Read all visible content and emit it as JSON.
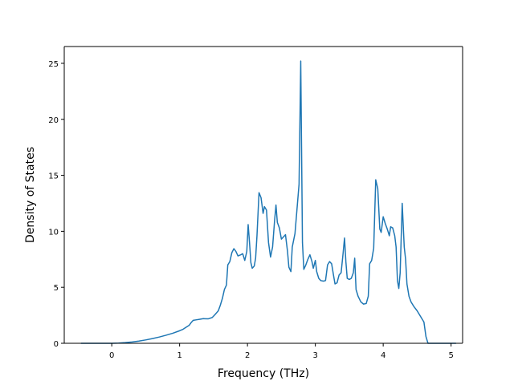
{
  "chart_data": {
    "type": "line",
    "title": "",
    "xlabel": "Frequency (THz)",
    "ylabel": "Density of States",
    "xlim": [
      -0.7,
      5.17
    ],
    "ylim": [
      0,
      26.5
    ],
    "grid": false,
    "legend": "none",
    "x_ticks": [
      0,
      1,
      2,
      3,
      4,
      5
    ],
    "y_ticks": [
      0,
      5,
      10,
      15,
      20,
      25
    ],
    "x_tick_labels": [
      "0",
      "1",
      "2",
      "3",
      "4",
      "5"
    ],
    "y_tick_labels": [
      "0",
      "5",
      "10",
      "15",
      "20",
      "25"
    ],
    "series": [
      {
        "color": "#1f77b4",
        "points": [
          [
            -0.45,
            0.0
          ],
          [
            -0.3,
            0.0
          ],
          [
            -0.1,
            0.0
          ],
          [
            0.0,
            0.0
          ],
          [
            0.1,
            0.02
          ],
          [
            0.2,
            0.06
          ],
          [
            0.3,
            0.12
          ],
          [
            0.4,
            0.2
          ],
          [
            0.5,
            0.3
          ],
          [
            0.6,
            0.42
          ],
          [
            0.7,
            0.56
          ],
          [
            0.8,
            0.72
          ],
          [
            0.9,
            0.9
          ],
          [
            1.0,
            1.12
          ],
          [
            1.05,
            1.25
          ],
          [
            1.1,
            1.45
          ],
          [
            1.14,
            1.6
          ],
          [
            1.17,
            1.85
          ],
          [
            1.2,
            2.05
          ],
          [
            1.25,
            2.1
          ],
          [
            1.3,
            2.15
          ],
          [
            1.35,
            2.2
          ],
          [
            1.42,
            2.18
          ],
          [
            1.48,
            2.3
          ],
          [
            1.52,
            2.55
          ],
          [
            1.57,
            2.9
          ],
          [
            1.6,
            3.4
          ],
          [
            1.63,
            4.0
          ],
          [
            1.66,
            4.8
          ],
          [
            1.69,
            5.2
          ],
          [
            1.71,
            7.0
          ],
          [
            1.74,
            7.3
          ],
          [
            1.77,
            8.1
          ],
          [
            1.8,
            8.45
          ],
          [
            1.83,
            8.2
          ],
          [
            1.86,
            7.8
          ],
          [
            1.9,
            7.9
          ],
          [
            1.93,
            8.0
          ],
          [
            1.96,
            7.4
          ],
          [
            1.99,
            8.2
          ],
          [
            2.01,
            10.6
          ],
          [
            2.03,
            9.0
          ],
          [
            2.05,
            7.2
          ],
          [
            2.07,
            6.7
          ],
          [
            2.1,
            6.9
          ],
          [
            2.12,
            7.6
          ],
          [
            2.14,
            9.6
          ],
          [
            2.17,
            13.45
          ],
          [
            2.2,
            13.0
          ],
          [
            2.23,
            11.6
          ],
          [
            2.25,
            12.2
          ],
          [
            2.28,
            11.9
          ],
          [
            2.31,
            9.0
          ],
          [
            2.34,
            7.7
          ],
          [
            2.37,
            8.6
          ],
          [
            2.4,
            11.0
          ],
          [
            2.42,
            12.35
          ],
          [
            2.44,
            10.8
          ],
          [
            2.47,
            10.3
          ],
          [
            2.5,
            9.3
          ],
          [
            2.53,
            9.5
          ],
          [
            2.56,
            9.7
          ],
          [
            2.59,
            8.2
          ],
          [
            2.61,
            6.8
          ],
          [
            2.64,
            6.4
          ],
          [
            2.66,
            8.6
          ],
          [
            2.7,
            9.8
          ],
          [
            2.73,
            12.0
          ],
          [
            2.76,
            14.2
          ],
          [
            2.785,
            25.2
          ],
          [
            2.81,
            9.0
          ],
          [
            2.83,
            6.6
          ],
          [
            2.86,
            7.0
          ],
          [
            2.89,
            7.5
          ],
          [
            2.92,
            7.9
          ],
          [
            2.95,
            7.3
          ],
          [
            2.97,
            6.7
          ],
          [
            3.0,
            7.4
          ],
          [
            3.02,
            6.4
          ],
          [
            3.05,
            5.8
          ],
          [
            3.08,
            5.6
          ],
          [
            3.12,
            5.55
          ],
          [
            3.15,
            5.6
          ],
          [
            3.18,
            7.0
          ],
          [
            3.21,
            7.3
          ],
          [
            3.24,
            7.1
          ],
          [
            3.27,
            6.0
          ],
          [
            3.29,
            5.3
          ],
          [
            3.32,
            5.4
          ],
          [
            3.35,
            6.1
          ],
          [
            3.38,
            6.3
          ],
          [
            3.41,
            8.1
          ],
          [
            3.43,
            9.4
          ],
          [
            3.45,
            7.3
          ],
          [
            3.47,
            5.8
          ],
          [
            3.5,
            5.7
          ],
          [
            3.53,
            5.8
          ],
          [
            3.56,
            6.3
          ],
          [
            3.58,
            7.6
          ],
          [
            3.6,
            4.8
          ],
          [
            3.63,
            4.2
          ],
          [
            3.67,
            3.7
          ],
          [
            3.71,
            3.5
          ],
          [
            3.75,
            3.55
          ],
          [
            3.78,
            4.2
          ],
          [
            3.8,
            7.1
          ],
          [
            3.83,
            7.4
          ],
          [
            3.86,
            8.5
          ],
          [
            3.89,
            14.6
          ],
          [
            3.92,
            13.8
          ],
          [
            3.95,
            10.2
          ],
          [
            3.97,
            9.9
          ],
          [
            4.0,
            11.3
          ],
          [
            4.03,
            10.7
          ],
          [
            4.06,
            10.2
          ],
          [
            4.09,
            9.6
          ],
          [
            4.11,
            10.4
          ],
          [
            4.14,
            10.3
          ],
          [
            4.17,
            9.6
          ],
          [
            4.19,
            8.6
          ],
          [
            4.21,
            5.6
          ],
          [
            4.23,
            4.9
          ],
          [
            4.25,
            6.3
          ],
          [
            4.28,
            12.5
          ],
          [
            4.31,
            8.6
          ],
          [
            4.33,
            7.5
          ],
          [
            4.35,
            5.3
          ],
          [
            4.38,
            4.2
          ],
          [
            4.41,
            3.7
          ],
          [
            4.45,
            3.3
          ],
          [
            4.5,
            2.9
          ],
          [
            4.55,
            2.4
          ],
          [
            4.6,
            1.9
          ],
          [
            4.63,
            0.6
          ],
          [
            4.66,
            0.0
          ],
          [
            4.8,
            0.0
          ],
          [
            5.0,
            0.0
          ],
          [
            5.07,
            0.0
          ]
        ]
      }
    ]
  }
}
